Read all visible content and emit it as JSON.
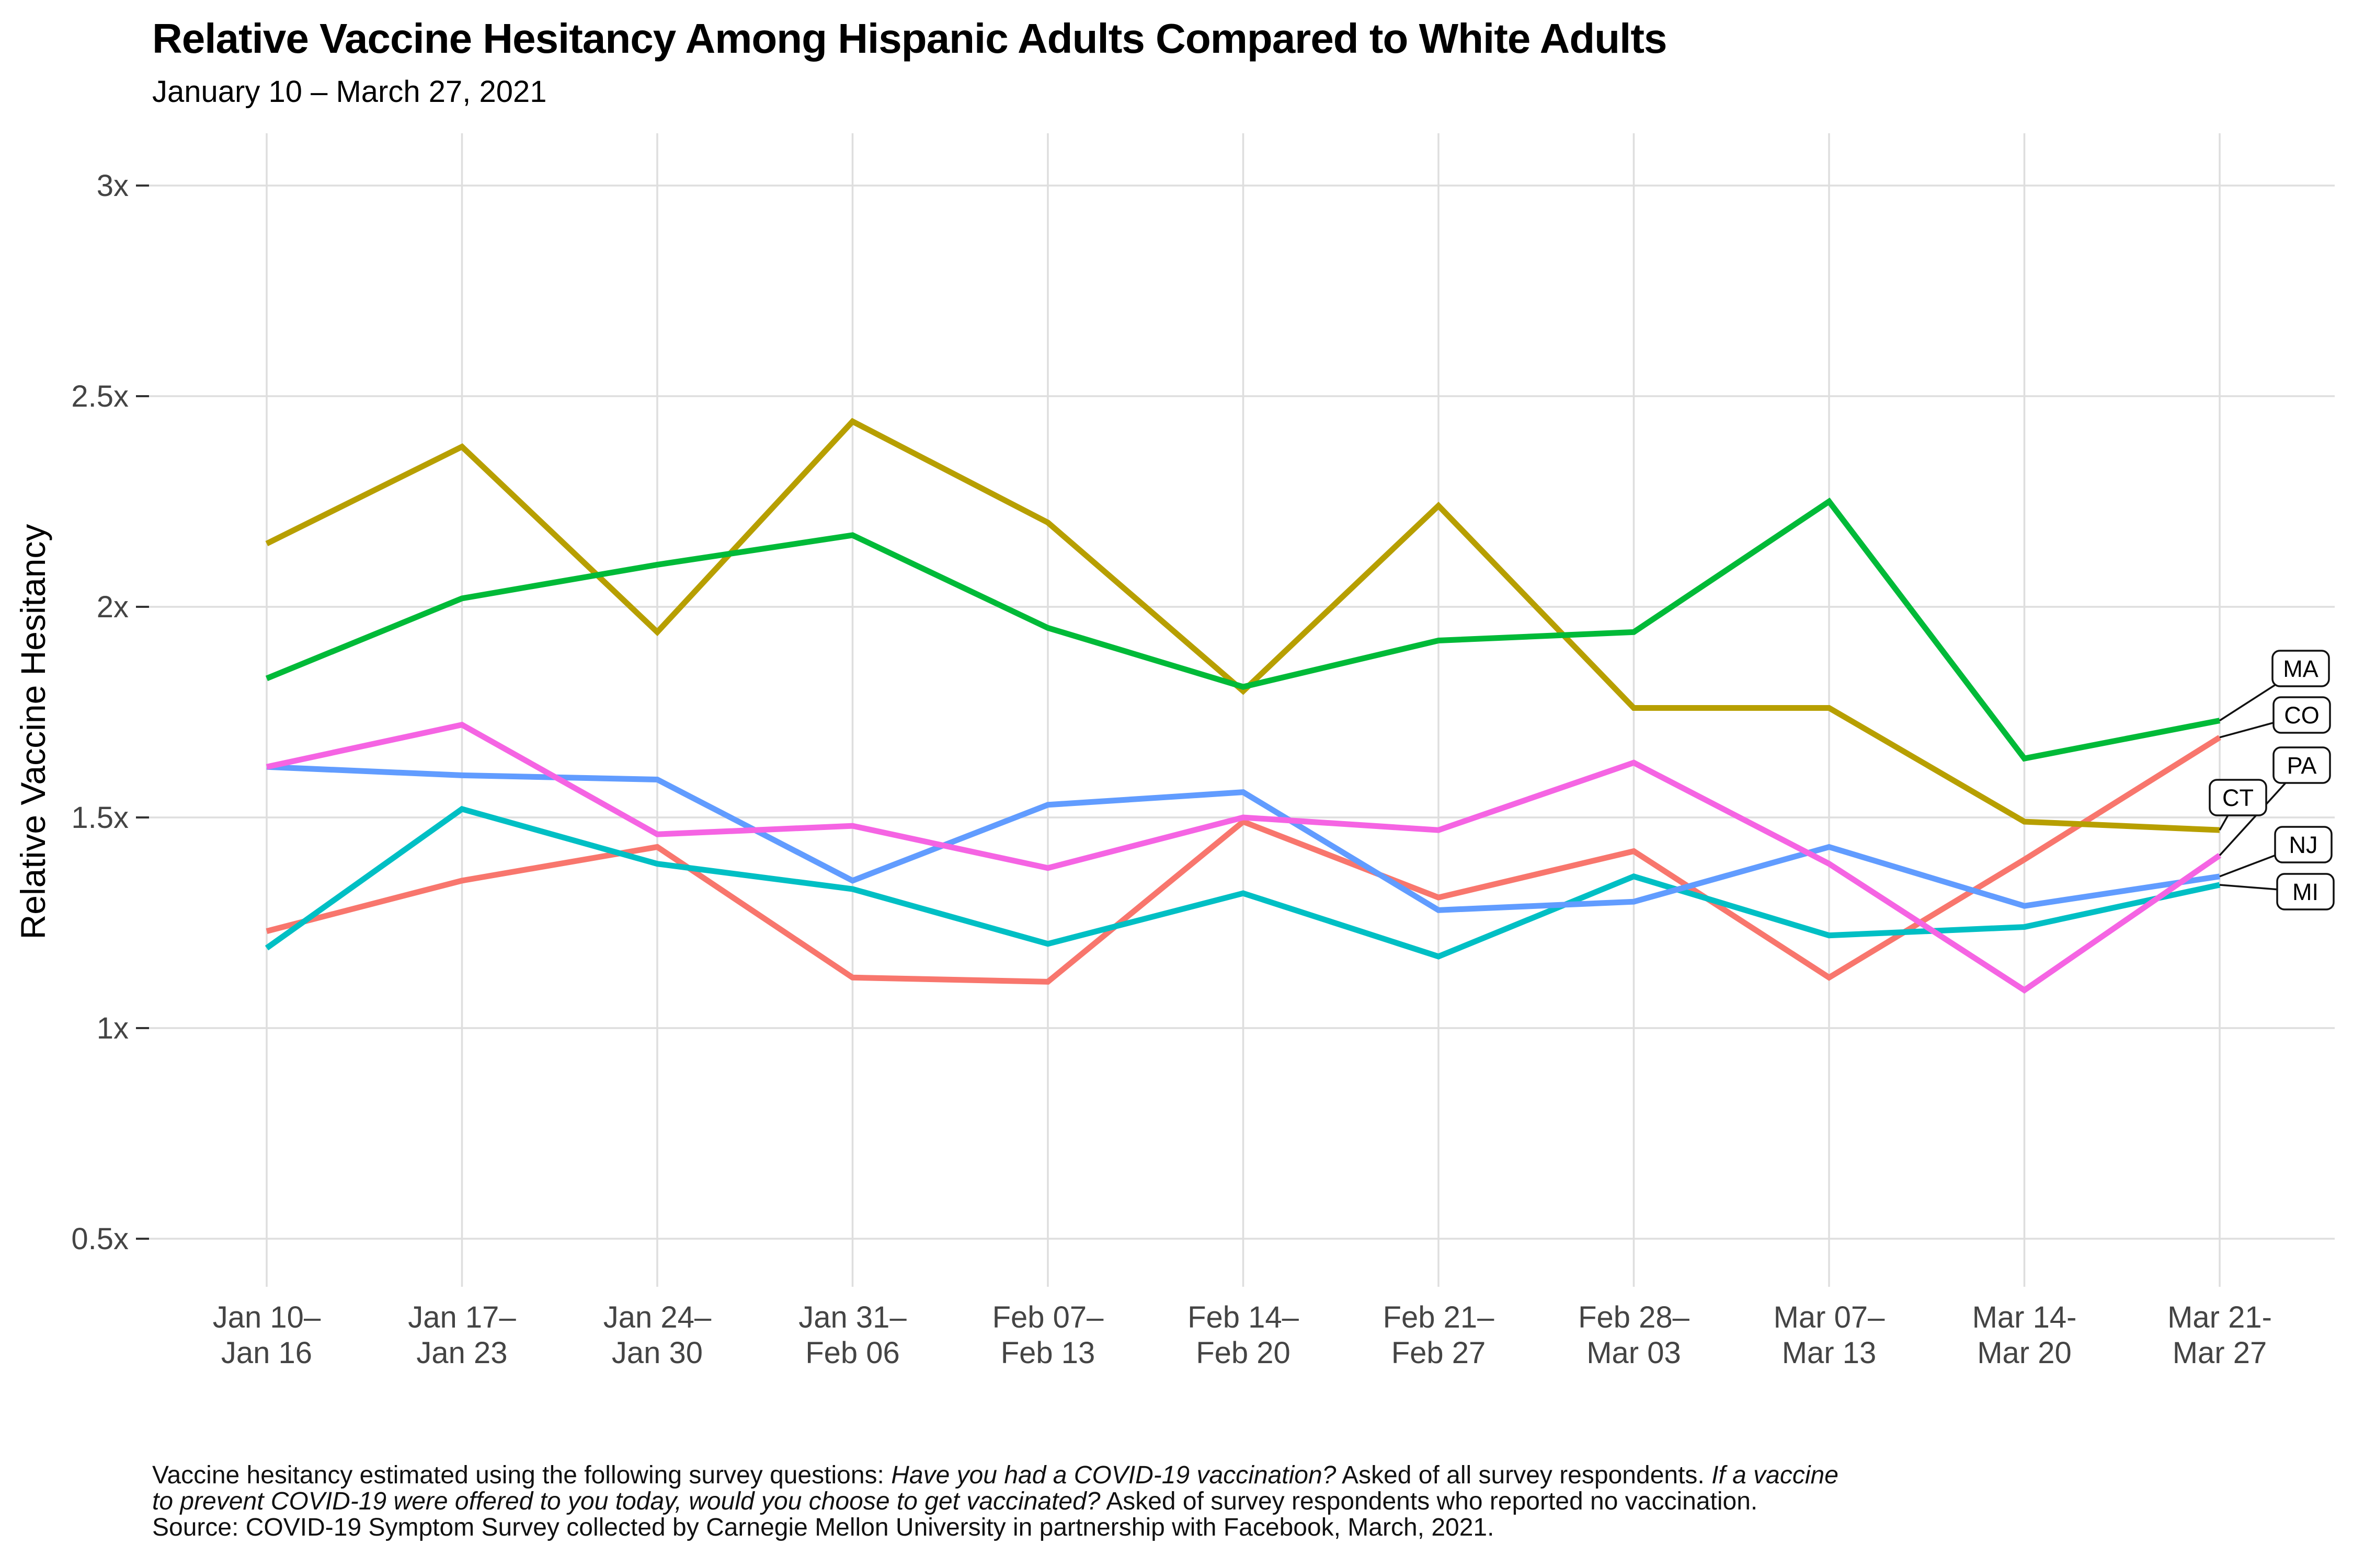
{
  "header": {
    "title": "Relative Vaccine Hesitancy Among Hispanic Adults Compared to White Adults",
    "subtitle": "January 10 – March 27, 2021"
  },
  "chart_data": {
    "type": "line",
    "title": "Relative Vaccine Hesitancy Among Hispanic Adults Compared to White Adults",
    "subtitle": "January 10 – March 27, 2021",
    "xlabel": "",
    "ylabel": "Relative Vaccine Hesitancy",
    "ylim": [
      0.5,
      3
    ],
    "grid": true,
    "legend_position": "line-end-labels-right",
    "gridline_color": "#DEDEDE",
    "axis_tick_color": "#333333",
    "axis_text_color": "#444444",
    "y_ticks": [
      {
        "value": 3.0,
        "label": "3x"
      },
      {
        "value": 2.5,
        "label": "2.5x"
      },
      {
        "value": 2.0,
        "label": "2x"
      },
      {
        "value": 1.5,
        "label": "1.5x"
      },
      {
        "value": 1.0,
        "label": "1x"
      },
      {
        "value": 0.5,
        "label": "0.5x"
      }
    ],
    "categories": [
      [
        "Jan 10–",
        "Jan 16"
      ],
      [
        "Jan 17–",
        "Jan 23"
      ],
      [
        "Jan 24–",
        "Jan 30"
      ],
      [
        "Jan 31–",
        "Feb 06"
      ],
      [
        "Feb 07–",
        "Feb 13"
      ],
      [
        "Feb 14–",
        "Feb 20"
      ],
      [
        "Feb 21–",
        "Feb 27"
      ],
      [
        "Feb 28–",
        "Mar 03"
      ],
      [
        "Mar 07–",
        "Mar 13"
      ],
      [
        "Mar 14-",
        "Mar 20"
      ],
      [
        "Mar 21-",
        "Mar 27"
      ]
    ],
    "series": [
      {
        "name": "CO",
        "color": "#F8766D",
        "values": [
          1.23,
          1.35,
          1.43,
          1.12,
          1.11,
          1.49,
          1.31,
          1.42,
          1.12,
          1.4,
          1.69
        ]
      },
      {
        "name": "CT",
        "color": "#B79F00",
        "values": [
          2.15,
          2.38,
          1.94,
          2.44,
          2.2,
          1.8,
          2.24,
          1.76,
          1.76,
          1.49,
          1.47
        ]
      },
      {
        "name": "MA",
        "color": "#00BA38",
        "values": [
          1.83,
          2.02,
          2.1,
          2.17,
          1.95,
          1.81,
          1.92,
          1.94,
          2.25,
          1.64,
          1.73
        ]
      },
      {
        "name": "MI",
        "color": "#00BFC4",
        "values": [
          1.19,
          1.52,
          1.39,
          1.33,
          1.2,
          1.32,
          1.17,
          1.36,
          1.22,
          1.24,
          1.34
        ]
      },
      {
        "name": "NJ",
        "color": "#619CFF",
        "values": [
          1.62,
          1.6,
          1.59,
          1.35,
          1.53,
          1.56,
          1.28,
          1.3,
          1.43,
          1.29,
          1.36
        ]
      },
      {
        "name": "PA",
        "color": "#F564E3",
        "values": [
          1.62,
          1.72,
          1.46,
          1.48,
          1.38,
          1.5,
          1.47,
          1.63,
          1.39,
          1.09,
          1.41
        ]
      }
    ],
    "end_labels": [
      "MA",
      "CO",
      "PA",
      "CT",
      "NJ",
      "MI"
    ]
  },
  "caption": {
    "lines": [
      [
        {
          "text": "Vaccine hesitancy estimated using the following survey questions: ",
          "italic": false
        },
        {
          "text": "Have you had a COVID-19 vaccination?",
          "italic": true
        },
        {
          "text": " Asked of all survey respondents. ",
          "italic": false
        },
        {
          "text": "If a vaccine",
          "italic": true
        }
      ],
      [
        {
          "text": "to prevent COVID-19 were offered to you today, would you choose to get vaccinated?",
          "italic": true
        },
        {
          "text": " Asked of survey respondents who reported no vaccination.",
          "italic": false
        }
      ],
      [
        {
          "text": "Source: COVID-19 Symptom Survey collected by Carnegie Mellon University in partnership with Facebook, March, 2021.",
          "italic": false
        }
      ]
    ]
  }
}
